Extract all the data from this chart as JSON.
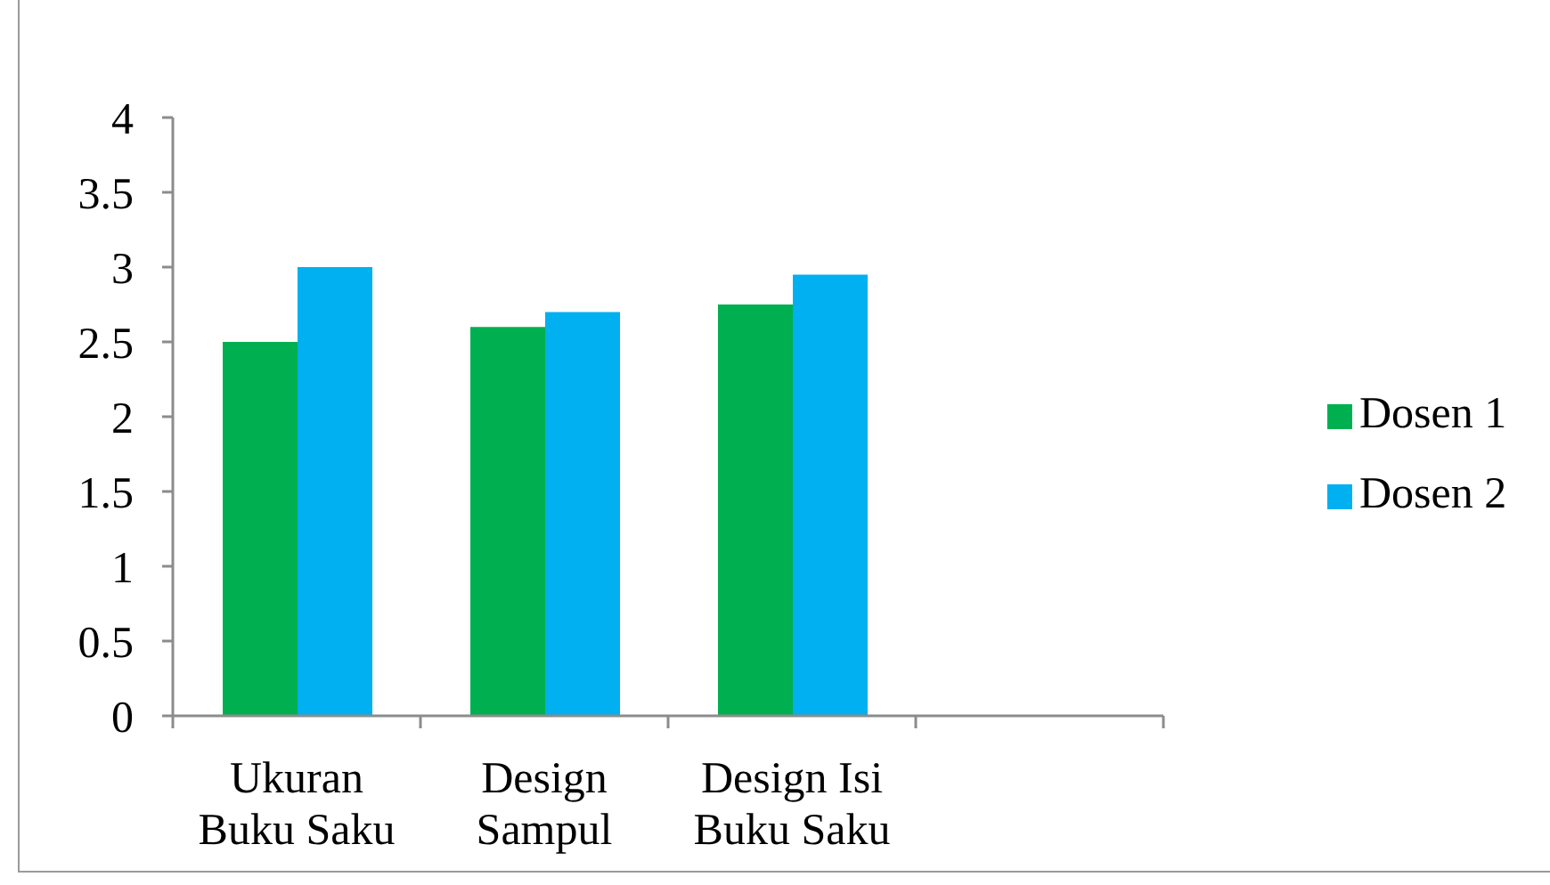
{
  "chart_data": {
    "type": "bar",
    "categories": [
      "Ukuran Buku Saku",
      "Design Sampul",
      "Design Isi Buku Saku",
      null
    ],
    "series": [
      {
        "name": "Dosen 1",
        "color": "#00b050",
        "values": [
          2.5,
          2.6,
          2.75,
          null
        ]
      },
      {
        "name": "Dosen 2",
        "color": "#00b0f0",
        "values": [
          3,
          2.7,
          2.95,
          null
        ]
      }
    ],
    "ylim": [
      0,
      4
    ],
    "yticks": [
      0,
      0.5,
      1,
      1.5,
      2,
      2.5,
      3,
      3.5,
      4
    ],
    "legend": "right"
  }
}
